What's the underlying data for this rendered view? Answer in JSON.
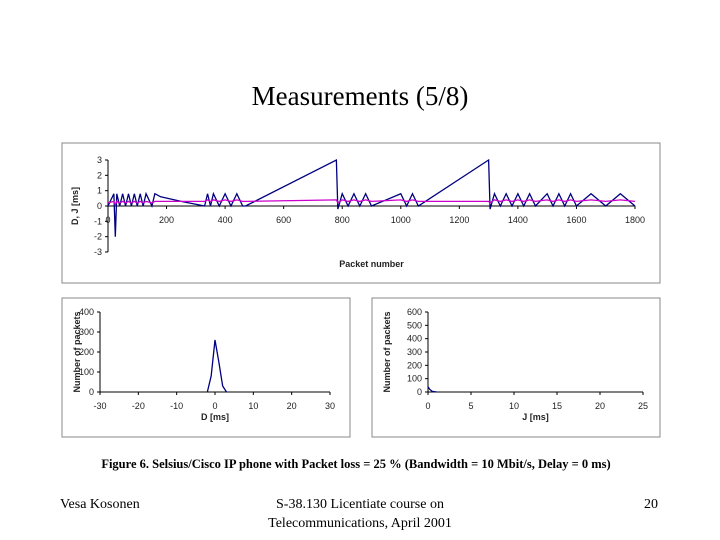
{
  "slide": {
    "title": "Measurements (5/8)",
    "caption": "Figure 6.  Selsius/Cisco IP phone with Packet loss = 25 %  (Bandwidth = 10 Mbit/s, Delay = 0 ms)",
    "footer_left": "Vesa Kosonen",
    "footer_center": [
      "S-38.130 Licentiate course on",
      "Telecommunications, April 2001"
    ],
    "footer_right": "20"
  },
  "chart_data": [
    {
      "type": "line",
      "y_label": "D, J [ms]",
      "x_label": "Packet number",
      "x": [
        0,
        20,
        25,
        30,
        40,
        50,
        60,
        70,
        80,
        90,
        100,
        110,
        120,
        130,
        150,
        160,
        180,
        250,
        330,
        340,
        350,
        360,
        380,
        400,
        420,
        440,
        460,
        470,
        780,
        785,
        800,
        820,
        840,
        860,
        880,
        900,
        1000,
        1020,
        1040,
        1060,
        1300,
        1305,
        1320,
        1340,
        1360,
        1380,
        1400,
        1420,
        1440,
        1460,
        1500,
        1520,
        1540,
        1560,
        1580,
        1600,
        1650,
        1700,
        1750,
        1800
      ],
      "series": [
        {
          "name": "D",
          "color": "#000080",
          "values": [
            0,
            0.8,
            -2,
            0.8,
            0,
            0.8,
            0,
            0.8,
            0,
            0.8,
            0,
            0.8,
            0,
            0.8,
            0,
            0.8,
            0.6,
            0.3,
            0,
            0.8,
            0,
            0.8,
            0,
            0.8,
            0,
            0.8,
            0,
            0,
            3,
            -0.2,
            0.8,
            0,
            0.8,
            0,
            0.8,
            0,
            0.8,
            0,
            0.8,
            0,
            3,
            -0.2,
            0.8,
            0,
            0.8,
            0,
            0.8,
            0,
            0.8,
            0,
            0.8,
            0,
            0.8,
            0,
            0.8,
            0,
            0.8,
            0,
            0.8,
            0
          ]
        },
        {
          "name": "J",
          "color": "#cc00cc",
          "values": [
            0.2,
            0.3,
            0.1,
            0.3,
            0.2,
            0.3,
            0.2,
            0.3,
            0.2,
            0.3,
            0.2,
            0.3,
            0.2,
            0.3,
            0.2,
            0.3,
            0.3,
            0.3,
            0.3,
            0.4,
            0.3,
            0.4,
            0.3,
            0.4,
            0.3,
            0.4,
            0.3,
            0.3,
            0.4,
            0.2,
            0.4,
            0.3,
            0.4,
            0.3,
            0.4,
            0.3,
            0.4,
            0.3,
            0.4,
            0.3,
            0.3,
            0.2,
            0.4,
            0.3,
            0.4,
            0.3,
            0.4,
            0.3,
            0.4,
            0.3,
            0.4,
            0.3,
            0.4,
            0.3,
            0.4,
            0.3,
            0.4,
            0.3,
            0.4,
            0.3
          ]
        }
      ],
      "xlim": [
        0,
        1800
      ],
      "xticks": [
        0,
        200,
        400,
        600,
        800,
        1000,
        1200,
        1400,
        1600,
        1800
      ],
      "ylim": [
        -3,
        3
      ],
      "yticks": [
        3,
        2,
        1,
        0,
        -1,
        -2,
        -3
      ]
    },
    {
      "type": "line",
      "y_label": "Number of packets",
      "x_label": "D [ms]",
      "x": [
        -2,
        -1,
        0,
        1,
        2,
        3
      ],
      "series": [
        {
          "name": "D",
          "color": "#000080",
          "values": [
            0,
            80,
            260,
            150,
            30,
            0
          ]
        }
      ],
      "xlim": [
        -30,
        30
      ],
      "xticks": [
        -30,
        -20,
        -10,
        0,
        10,
        20,
        30
      ],
      "ylim": [
        0,
        400
      ],
      "yticks": [
        0,
        100,
        200,
        300,
        400
      ]
    },
    {
      "type": "line",
      "y_label": "Number of packets",
      "x_label": "J [ms]",
      "x": [
        0,
        0.2,
        0.5,
        1
      ],
      "series": [
        {
          "name": "J",
          "color": "#000080",
          "values": [
            40,
            20,
            5,
            0
          ]
        }
      ],
      "xlim": [
        0,
        25
      ],
      "xticks": [
        0,
        5,
        10,
        15,
        20,
        25
      ],
      "ylim": [
        0,
        600
      ],
      "yticks": [
        0,
        100,
        200,
        300,
        400,
        500,
        600
      ]
    }
  ]
}
